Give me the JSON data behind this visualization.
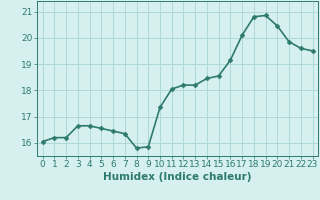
{
  "x": [
    0,
    1,
    2,
    3,
    4,
    5,
    6,
    7,
    8,
    9,
    10,
    11,
    12,
    13,
    14,
    15,
    16,
    17,
    18,
    19,
    20,
    21,
    22,
    23
  ],
  "y": [
    16.05,
    16.2,
    16.2,
    16.65,
    16.65,
    16.55,
    16.45,
    16.35,
    15.8,
    15.85,
    17.35,
    18.05,
    18.2,
    18.2,
    18.45,
    18.55,
    19.15,
    20.1,
    20.8,
    20.85,
    20.45,
    19.85,
    19.6,
    19.5
  ],
  "line_color": "#2d7a6e",
  "marker": "D",
  "marker_size": 2.5,
  "bg_color": "#d6f0f0",
  "grid_color": "#b0d8d8",
  "xlabel": "Humidex (Indice chaleur)",
  "ylabel": "",
  "xlim": [
    -0.5,
    23.5
  ],
  "ylim": [
    15.5,
    21.4
  ],
  "yticks": [
    16,
    17,
    18,
    19,
    20,
    21
  ],
  "xticks": [
    0,
    1,
    2,
    3,
    4,
    5,
    6,
    7,
    8,
    9,
    10,
    11,
    12,
    13,
    14,
    15,
    16,
    17,
    18,
    19,
    20,
    21,
    22,
    23
  ],
  "tick_fontsize": 6.5,
  "xlabel_fontsize": 7.5,
  "line_width": 1.2,
  "axis_color": "#2d7a6e"
}
